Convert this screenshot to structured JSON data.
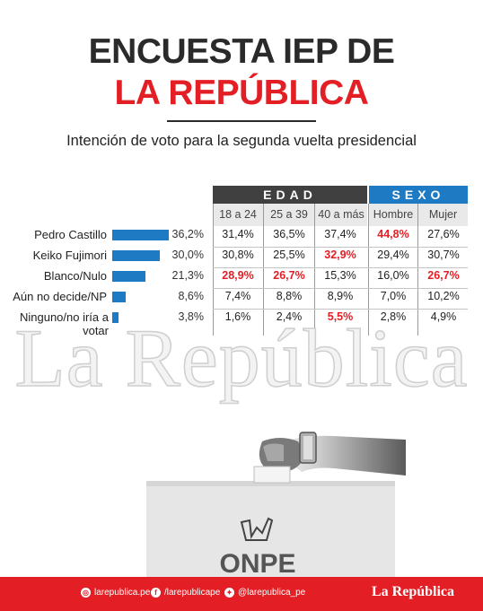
{
  "title_line1": "ENCUESTA IEP DE",
  "title_line2": "LA REPÚBLICA",
  "subtitle": "Intención de voto para la segunda vuelta presidencial",
  "group_headers": {
    "edad": "EDAD",
    "sexo": "SEXO"
  },
  "columns": [
    "18 a 24",
    "25 a 39",
    "40 a más",
    "Hombre",
    "Mujer"
  ],
  "accent_blue": "#1f7ac4",
  "accent_red": "#e31e24",
  "chart_data": {
    "type": "bar",
    "categories": [
      "Pedro Castillo",
      "Keiko Fujimori",
      "Blanco/Nulo",
      "Aún no decide/NP",
      "Ninguno/no iría a votar"
    ],
    "values": [
      36.2,
      30.0,
      21.3,
      8.6,
      3.8
    ],
    "value_labels": [
      "36,2%",
      "30,0%",
      "21,3%",
      "8,6%",
      "3,8%"
    ]
  },
  "table": [
    {
      "cells": [
        "31,4%",
        "36,5%",
        "37,4%",
        "44,8%",
        "27,6%"
      ],
      "highlight": [
        false,
        false,
        false,
        true,
        false
      ]
    },
    {
      "cells": [
        "30,8%",
        "25,5%",
        "32,9%",
        "29,4%",
        "30,7%"
      ],
      "highlight": [
        false,
        false,
        true,
        false,
        false
      ]
    },
    {
      "cells": [
        "28,9%",
        "26,7%",
        "15,3%",
        "16,0%",
        "26,7%"
      ],
      "highlight": [
        true,
        true,
        false,
        false,
        true
      ]
    },
    {
      "cells": [
        "7,4%",
        "8,8%",
        "8,9%",
        "7,0%",
        "10,2%"
      ],
      "highlight": [
        false,
        false,
        false,
        false,
        false
      ]
    },
    {
      "cells": [
        "1,6%",
        "2,4%",
        "5,5%",
        "2,8%",
        "4,9%"
      ],
      "highlight": [
        false,
        false,
        true,
        false,
        false
      ]
    }
  ],
  "watermark": "La República",
  "ballot_box_label": "ONPE",
  "footer": {
    "web": "larepublica.pe",
    "facebook": "/larepublicape",
    "twitter": "@larepublica_pe",
    "logo": "La República"
  }
}
